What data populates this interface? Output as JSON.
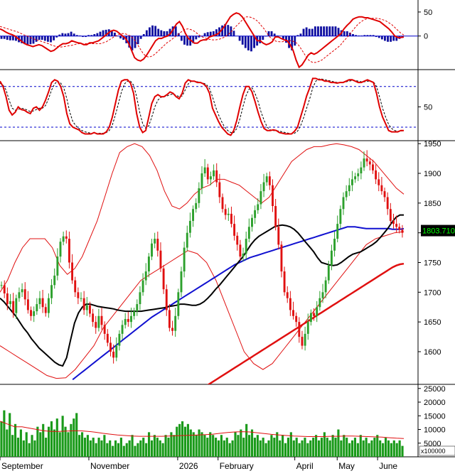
{
  "chart_data": [
    {
      "panel": "macd",
      "type": "line",
      "axis_ticks": [
        "50",
        "0"
      ],
      "ylim": [
        -70,
        75
      ],
      "zero_line": true,
      "colors": {
        "macd": "#e00000",
        "signal": "#e00000",
        "histogram": "#1010a0",
        "zero": "#0000cc"
      },
      "macd_values": [
        15,
        12,
        8,
        5,
        3,
        0,
        -5,
        -10,
        -15,
        -18,
        -20,
        -22,
        -20,
        -18,
        -20,
        -24,
        -28,
        -32,
        -30,
        -25,
        -20,
        -16,
        -16,
        -14,
        -10,
        -12,
        -14,
        -15,
        -18,
        -18,
        -14,
        -14,
        -12,
        -10,
        -5,
        0,
        5,
        10,
        12,
        10,
        5,
        0,
        -5,
        -15,
        -30,
        -45,
        -50,
        -52,
        -48,
        -40,
        -30,
        -20,
        -10,
        -5,
        -5,
        -2,
        0,
        5,
        15,
        25,
        30,
        20,
        5,
        -5,
        -10,
        -15,
        -15,
        -10,
        -8,
        -8,
        -2,
        0,
        2,
        5,
        12,
        20,
        30,
        40,
        45,
        48,
        46,
        40,
        30,
        20,
        10,
        0,
        -10,
        -10,
        -15,
        -18,
        -16,
        -12,
        -2,
        -2,
        -5,
        -8,
        -10,
        -18,
        -30,
        -50,
        -65,
        -60,
        -50,
        -40,
        -35,
        -38,
        -35,
        -30,
        -25,
        -20,
        -15,
        -10,
        -5,
        0,
        5,
        15,
        22,
        28,
        35,
        38,
        40,
        40,
        38,
        38,
        36,
        34,
        32,
        30,
        25,
        20,
        15,
        8,
        0,
        -3,
        -3,
        -2
      ],
      "signal_values": [
        20,
        18,
        16,
        14,
        12,
        10,
        8,
        5,
        2,
        0,
        -3,
        -6,
        -8,
        -10,
        -12,
        -14,
        -16,
        -19,
        -21,
        -22,
        -23,
        -22,
        -21,
        -20,
        -19,
        -17,
        -16,
        -16,
        -16,
        -16,
        -16,
        -16,
        -16,
        -16,
        -14,
        -12,
        -8,
        -4,
        0,
        3,
        5,
        5,
        3,
        0,
        -6,
        -15,
        -25,
        -35,
        -42,
        -44,
        -42,
        -38,
        -32,
        -26,
        -20,
        -14,
        -10,
        -5,
        0,
        5,
        10,
        14,
        15,
        13,
        10,
        5,
        0,
        -3,
        -5,
        -7,
        -8,
        -8,
        -7,
        -5,
        -2,
        2,
        8,
        15,
        22,
        28,
        35,
        40,
        40,
        38,
        35,
        30,
        22,
        15,
        5,
        -3,
        -8,
        -11,
        -12,
        -12,
        -10,
        -9,
        -10,
        -12,
        -16,
        -25,
        -35,
        -45,
        -52,
        -55,
        -55,
        -53,
        -50,
        -45,
        -40,
        -35,
        -30,
        -25,
        -20,
        -12,
        -5,
        2,
        10,
        18,
        25,
        30,
        34,
        36,
        37,
        37,
        37,
        36,
        34,
        32,
        28,
        24,
        18,
        12,
        6,
        2
      ],
      "histogram_values": [
        -6,
        -6,
        -8,
        -9,
        -9,
        -10,
        -13,
        -15,
        -17,
        -18,
        -17,
        -16,
        -12,
        -8,
        -8,
        -10,
        -12,
        -13,
        -9,
        -3,
        3,
        6,
        5,
        6,
        9,
        5,
        2,
        1,
        -2,
        -2,
        2,
        2,
        4,
        6,
        9,
        12,
        13,
        14,
        12,
        7,
        0,
        -5,
        -8,
        -15,
        -24,
        -30,
        -25,
        -17,
        -6,
        4,
        12,
        18,
        22,
        21,
        15,
        12,
        10,
        10,
        15,
        20,
        20,
        6,
        -10,
        -18,
        -20,
        -20,
        -15,
        -7,
        -3,
        -1,
        6,
        8,
        9,
        10,
        14,
        18,
        22,
        25,
        23,
        20,
        11,
        0,
        -10,
        -18,
        -25,
        -30,
        -32,
        -25,
        -20,
        -15,
        -8,
        -1,
        10,
        10,
        5,
        1,
        0,
        -6,
        -14,
        -25,
        -30,
        -20,
        2,
        5,
        15,
        18,
        15,
        15,
        20,
        20,
        20,
        20,
        20,
        20,
        20,
        20,
        17,
        12,
        10,
        10,
        7,
        4,
        2,
        1,
        1,
        2,
        2,
        2,
        2,
        -2,
        -4,
        -7,
        -10,
        -12,
        -12,
        -10,
        -10,
        -6,
        -4
      ]
    },
    {
      "panel": "stochastic",
      "type": "line",
      "axis_ticks": [
        "50"
      ],
      "ylim": [
        0,
        105
      ],
      "reference_lines": [
        80,
        20
      ],
      "colors": {
        "k": "#e00000",
        "d": "#000000",
        "ref": "#0000cc"
      },
      "k_values": [
        88,
        80,
        65,
        45,
        38,
        42,
        50,
        46,
        45,
        42,
        40,
        48,
        50,
        45,
        50,
        60,
        72,
        86,
        90,
        88,
        80,
        65,
        40,
        25,
        20,
        18,
        16,
        12,
        10,
        10,
        10,
        12,
        10,
        10,
        10,
        13,
        20,
        35,
        55,
        75,
        88,
        90,
        90,
        85,
        70,
        40,
        20,
        12,
        15,
        35,
        55,
        65,
        68,
        65,
        65,
        68,
        72,
        70,
        65,
        62,
        70,
        85,
        90,
        88,
        88,
        86,
        86,
        84,
        80,
        70,
        48,
        38,
        28,
        20,
        15,
        10,
        8,
        15,
        30,
        50,
        68,
        80,
        80,
        72,
        58,
        42,
        28,
        18,
        15,
        15,
        16,
        15,
        12,
        11,
        10,
        10,
        10,
        14,
        20,
        35,
        50,
        66,
        78,
        92,
        92,
        90,
        90,
        88,
        88,
        86,
        86,
        85,
        86,
        86,
        88,
        90,
        90,
        88,
        86,
        86,
        88,
        90,
        88,
        86,
        70,
        50,
        35,
        25,
        15,
        13,
        13,
        13,
        15,
        15
      ],
      "d_values": [
        85,
        82,
        75,
        60,
        48,
        45,
        46,
        48,
        47,
        45,
        43,
        44,
        46,
        48,
        48,
        52,
        62,
        75,
        84,
        88,
        85,
        78,
        62,
        42,
        28,
        22,
        18,
        15,
        13,
        12,
        11,
        11,
        11,
        11,
        11,
        12,
        15,
        23,
        38,
        55,
        72,
        84,
        88,
        88,
        82,
        65,
        42,
        25,
        18,
        22,
        35,
        50,
        60,
        64,
        65,
        66,
        68,
        69,
        67,
        65,
        66,
        75,
        84,
        88,
        88,
        87,
        86,
        85,
        83,
        77,
        65,
        50,
        38,
        28,
        20,
        15,
        12,
        12,
        18,
        32,
        50,
        66,
        76,
        78,
        70,
        58,
        42,
        30,
        20,
        16,
        15,
        15,
        14,
        13,
        12,
        11,
        10,
        11,
        14,
        22,
        34,
        48,
        62,
        78,
        88,
        91,
        91,
        90,
        89,
        88,
        87,
        86,
        86,
        86,
        87,
        88,
        89,
        89,
        88,
        87,
        87,
        88,
        88,
        87,
        80,
        65,
        48,
        35,
        24,
        18,
        15,
        14,
        14,
        15
      ],
      "dashed_series": "d"
    },
    {
      "panel": "price",
      "type": "candlestick",
      "axis_ticks": [
        "1950",
        "1900",
        "1850",
        "1800",
        "1750",
        "1700",
        "1650",
        "1600"
      ],
      "ylim": [
        1545,
        1955
      ],
      "last_price_label": "1803.710",
      "colors": {
        "up": "#2ca02c",
        "down": "#e01010",
        "bands": "#e01010",
        "ma_black": "#000000",
        "ma_blue": "#1010d0",
        "ma_red": "#e01010",
        "last_price_bg": "#000000",
        "last_price_text": "#00ff00"
      },
      "close": [
        1712,
        1698,
        1680,
        1685,
        1665,
        1690,
        1700,
        1705,
        1688,
        1670,
        1660,
        1668,
        1680,
        1690,
        1675,
        1665,
        1690,
        1712,
        1728,
        1760,
        1785,
        1794,
        1790,
        1750,
        1720,
        1700,
        1690,
        1690,
        1670,
        1678,
        1664,
        1650,
        1640,
        1660,
        1645,
        1630,
        1615,
        1600,
        1590,
        1610,
        1630,
        1645,
        1655,
        1650,
        1660,
        1668,
        1680,
        1700,
        1720,
        1735,
        1760,
        1782,
        1790,
        1770,
        1740,
        1705,
        1670,
        1640,
        1635,
        1660,
        1700,
        1735,
        1775,
        1800,
        1820,
        1840,
        1850,
        1875,
        1900,
        1910,
        1890,
        1895,
        1905,
        1885,
        1860,
        1840,
        1830,
        1832,
        1815,
        1795,
        1780,
        1760,
        1765,
        1790,
        1810,
        1825,
        1838,
        1848,
        1870,
        1885,
        1895,
        1880,
        1845,
        1810,
        1780,
        1735,
        1700,
        1690,
        1670,
        1660,
        1650,
        1625,
        1610,
        1630,
        1650,
        1665,
        1660,
        1675,
        1690,
        1700,
        1720,
        1745,
        1770,
        1790,
        1815,
        1840,
        1860,
        1870,
        1880,
        1890,
        1895,
        1900,
        1910,
        1925,
        1920,
        1915,
        1905,
        1890,
        1880,
        1870,
        1860,
        1840,
        1820,
        1815,
        1810,
        1805,
        1800
      ],
      "ma_black": [
        1690,
        1684,
        1676,
        1668,
        1660,
        1650,
        1640,
        1632,
        1622,
        1614,
        1606,
        1600,
        1594,
        1588,
        1582,
        1578,
        1576,
        1590,
        1620,
        1648,
        1665,
        1675,
        1680,
        1680,
        1678,
        1676,
        1675,
        1674,
        1673,
        1672,
        1670,
        1669,
        1668,
        1668,
        1668,
        1668,
        1668,
        1669,
        1670,
        1671,
        1672,
        1673,
        1674,
        1676,
        1677,
        1678,
        1680,
        1680,
        1679,
        1678,
        1678,
        1680,
        1684,
        1690,
        1697,
        1705,
        1712,
        1720,
        1728,
        1736,
        1744,
        1752,
        1760,
        1770,
        1780,
        1788,
        1794,
        1798,
        1802,
        1806,
        1810,
        1812,
        1813,
        1812,
        1810,
        1806,
        1800,
        1792,
        1784,
        1776,
        1768,
        1758,
        1750,
        1748,
        1746,
        1745,
        1746,
        1750,
        1755,
        1760,
        1764,
        1766,
        1768,
        1772,
        1776,
        1780,
        1785,
        1792,
        1800,
        1808,
        1818,
        1826,
        1830,
        1830
      ],
      "ma_blue": [
        1553,
        1558,
        1563,
        1568,
        1573,
        1578,
        1583,
        1588,
        1593,
        1598,
        1603,
        1608,
        1613,
        1618,
        1623,
        1628,
        1633,
        1638,
        1643,
        1648,
        1653,
        1658,
        1662,
        1666,
        1670,
        1674,
        1678,
        1682,
        1686,
        1690,
        1694,
        1698,
        1702,
        1706,
        1710,
        1714,
        1718,
        1722,
        1726,
        1730,
        1734,
        1738,
        1742,
        1746,
        1749,
        1752,
        1755,
        1758,
        1760,
        1762,
        1764,
        1766,
        1768,
        1770,
        1772,
        1774,
        1776,
        1778,
        1780,
        1782,
        1784,
        1786,
        1788,
        1790,
        1792,
        1794,
        1796,
        1798,
        1800,
        1802,
        1804,
        1806,
        1808,
        1810,
        1810,
        1810,
        1809,
        1808,
        1807,
        1807,
        1807,
        1807,
        1807,
        1807,
        1807,
        1806,
        1806,
        1806,
        1807
      ],
      "ma_red": [
        1542,
        1546,
        1550,
        1554,
        1558,
        1562,
        1566,
        1570,
        1574,
        1578,
        1582,
        1586,
        1590,
        1594,
        1598,
        1602,
        1606,
        1610,
        1614,
        1618,
        1622,
        1626,
        1630,
        1634,
        1638,
        1642,
        1646,
        1650,
        1654,
        1658,
        1662,
        1666,
        1670,
        1674,
        1678,
        1682,
        1686,
        1690,
        1694,
        1698,
        1702,
        1706,
        1710,
        1714,
        1718,
        1722,
        1726,
        1730,
        1734,
        1738,
        1742,
        1745,
        1747,
        1748
      ],
      "band_upper": [
        1700,
        1720,
        1750,
        1775,
        1790,
        1790,
        1790,
        1775,
        1745,
        1730,
        1740,
        1760,
        1790,
        1820,
        1860,
        1900,
        1935,
        1945,
        1950,
        1945,
        1930,
        1905,
        1870,
        1845,
        1840,
        1850,
        1865,
        1875,
        1880,
        1890,
        1890,
        1885,
        1880,
        1870,
        1860,
        1850,
        1860,
        1880,
        1900,
        1920,
        1930,
        1940,
        1945,
        1945,
        1948,
        1950,
        1948,
        1945,
        1940,
        1930,
        1920,
        1905,
        1890,
        1875,
        1865
      ],
      "band_lower": [
        1610,
        1600,
        1590,
        1580,
        1570,
        1560,
        1555,
        1556,
        1570,
        1590,
        1610,
        1640,
        1660,
        1680,
        1700,
        1720,
        1730,
        1740,
        1750,
        1760,
        1770,
        1765,
        1750,
        1720,
        1680,
        1640,
        1600,
        1580,
        1570,
        1580,
        1600,
        1620,
        1640,
        1660,
        1680,
        1700,
        1720,
        1740,
        1760,
        1780,
        1790,
        1795,
        1800,
        1802
      ]
    },
    {
      "panel": "volume",
      "type": "bar",
      "axis_ticks": [
        "25000",
        "20000",
        "15000",
        "10000",
        "5000"
      ],
      "unit_label": "x100000",
      "ylim": [
        0,
        26500
      ],
      "colors": {
        "bars": "#1a9a1a",
        "ma": "#e01010"
      },
      "x_tick_labels": [
        "September",
        "November",
        "2026",
        "February",
        "April",
        "May",
        "June"
      ],
      "values": [
        13000,
        17000,
        10000,
        16000,
        8000,
        12000,
        7000,
        10000,
        6000,
        9000,
        5000,
        8000,
        6000,
        11000,
        9000,
        12000,
        7000,
        11000,
        13000,
        10000,
        14000,
        9000,
        15000,
        11000,
        9000,
        12000,
        14000,
        16000,
        8000,
        9000,
        7000,
        8000,
        6000,
        7000,
        5000,
        7000,
        6000,
        8000,
        5000,
        6000,
        4000,
        6000,
        5000,
        7000,
        4000,
        5000,
        6000,
        8000,
        4000,
        5000,
        6000,
        7000,
        5000,
        9000,
        6000,
        8000,
        7000,
        6000,
        5000,
        8000,
        7000,
        9000,
        8000,
        11000,
        12000,
        13000,
        11000,
        12000,
        10000,
        9000,
        8000,
        10000,
        9000,
        8000,
        7000,
        9000,
        8000,
        7000,
        6000,
        8000,
        6000,
        7000,
        5000,
        6000,
        9000,
        8000,
        10000,
        7000,
        12000,
        8000,
        10000,
        7000,
        8000,
        6000,
        7000,
        5000,
        6000,
        8000,
        7000,
        9000,
        6000,
        8000,
        5000,
        7000,
        9000,
        6000,
        7000,
        5000,
        6000,
        7000,
        5000,
        6000,
        7000,
        8000,
        6000,
        7000,
        9000,
        7000,
        6000,
        8000,
        7000,
        10000,
        6000,
        8000,
        7000,
        5000,
        6000,
        7000,
        5000,
        8000,
        6000,
        7000,
        5000,
        6000,
        7000,
        8000,
        6000,
        5000,
        7000,
        6000,
        5000,
        6000,
        5000,
        6000,
        4000
      ],
      "ma_values": [
        13000,
        12000,
        11000,
        11000,
        10500,
        10000,
        9500,
        9300,
        9300,
        9400,
        9500,
        9500,
        9300,
        9000,
        8600,
        8300,
        8000,
        7800,
        7600,
        7500,
        7500,
        7500,
        7500,
        7600,
        7700,
        7800,
        7900,
        8000,
        8100,
        8300,
        8600,
        8900,
        9100,
        9200,
        9100,
        8800,
        8500,
        8200,
        8000,
        7800,
        7600,
        7500,
        7400,
        7400,
        7400,
        7500,
        7500,
        7600,
        7600,
        7500,
        7400,
        7300,
        7200,
        7000,
        6800,
        6700
      ]
    }
  ]
}
